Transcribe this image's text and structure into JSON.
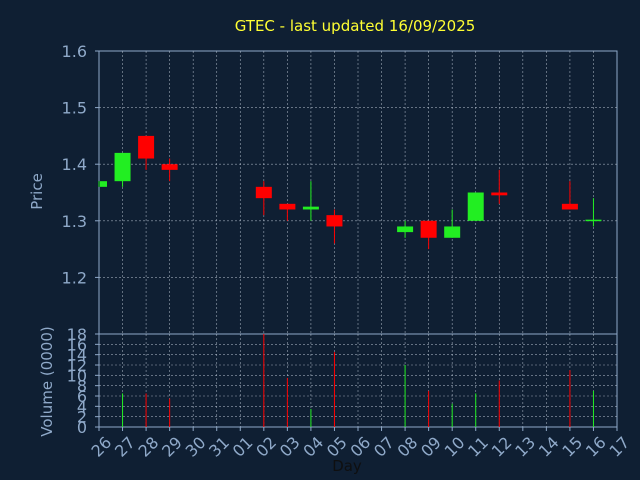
{
  "chart_data": {
    "type": "candlestick",
    "title": "GTEC - last updated 16/09/2025",
    "xlabel": "Day",
    "days": [
      "26",
      "27",
      "28",
      "29",
      "30",
      "31",
      "01",
      "02",
      "03",
      "04",
      "05",
      "06",
      "07",
      "08",
      "09",
      "10",
      "11",
      "12",
      "13",
      "14",
      "15",
      "16",
      "17"
    ],
    "price_panel": {
      "ylabel": "Price",
      "ylim": [
        1.1,
        1.6
      ],
      "yticks": [
        1.2,
        1.3,
        1.4,
        1.5,
        1.6
      ],
      "grid": true
    },
    "volume_panel": {
      "ylabel": "Volume (0000)",
      "ylim": [
        0,
        18
      ],
      "yticks": [
        0,
        2,
        4,
        6,
        8,
        10,
        12,
        14,
        16,
        18
      ],
      "grid": true
    },
    "candles": [
      {
        "day": "26",
        "open": 1.36,
        "close": 1.37,
        "high": 1.37,
        "low": 1.36,
        "volume": 0
      },
      {
        "day": "27",
        "open": 1.37,
        "close": 1.42,
        "high": 1.42,
        "low": 1.36,
        "volume": 6.5
      },
      {
        "day": "28",
        "open": 1.45,
        "close": 1.41,
        "high": 1.45,
        "low": 1.39,
        "volume": 6.5
      },
      {
        "day": "29",
        "open": 1.4,
        "close": 1.39,
        "high": 1.41,
        "low": 1.37,
        "volume": 5.5
      },
      {
        "day": "02",
        "open": 1.36,
        "close": 1.34,
        "high": 1.37,
        "low": 1.31,
        "volume": 18
      },
      {
        "day": "03",
        "open": 1.33,
        "close": 1.32,
        "high": 1.33,
        "low": 1.3,
        "volume": 9.5
      },
      {
        "day": "04",
        "open": 1.32,
        "close": 1.325,
        "high": 1.37,
        "low": 1.3,
        "volume": 3.5
      },
      {
        "day": "05",
        "open": 1.31,
        "close": 1.29,
        "high": 1.32,
        "low": 1.26,
        "volume": 14.5
      },
      {
        "day": "08",
        "open": 1.28,
        "close": 1.29,
        "high": 1.3,
        "low": 1.27,
        "volume": 12
      },
      {
        "day": "09",
        "open": 1.3,
        "close": 1.27,
        "high": 1.3,
        "low": 1.25,
        "volume": 7
      },
      {
        "day": "10",
        "open": 1.27,
        "close": 1.29,
        "high": 1.32,
        "low": 1.27,
        "volume": 4.5
      },
      {
        "day": "11",
        "open": 1.3,
        "close": 1.35,
        "high": 1.35,
        "low": 1.3,
        "volume": 6.5
      },
      {
        "day": "12",
        "open": 1.35,
        "close": 1.345,
        "high": 1.39,
        "low": 1.33,
        "volume": 9
      },
      {
        "day": "15",
        "open": 1.33,
        "close": 1.32,
        "high": 1.37,
        "low": 1.32,
        "volume": 11
      },
      {
        "day": "16",
        "open": 1.3,
        "close": 1.302,
        "high": 1.34,
        "low": 1.29,
        "volume": 7
      }
    ],
    "colors": {
      "background": "#0f1f33",
      "axis": "#8fa9c9",
      "grid": "#c8d2e0",
      "title": "#ffff33",
      "up": "#22ee22",
      "down": "#ff0000"
    }
  }
}
